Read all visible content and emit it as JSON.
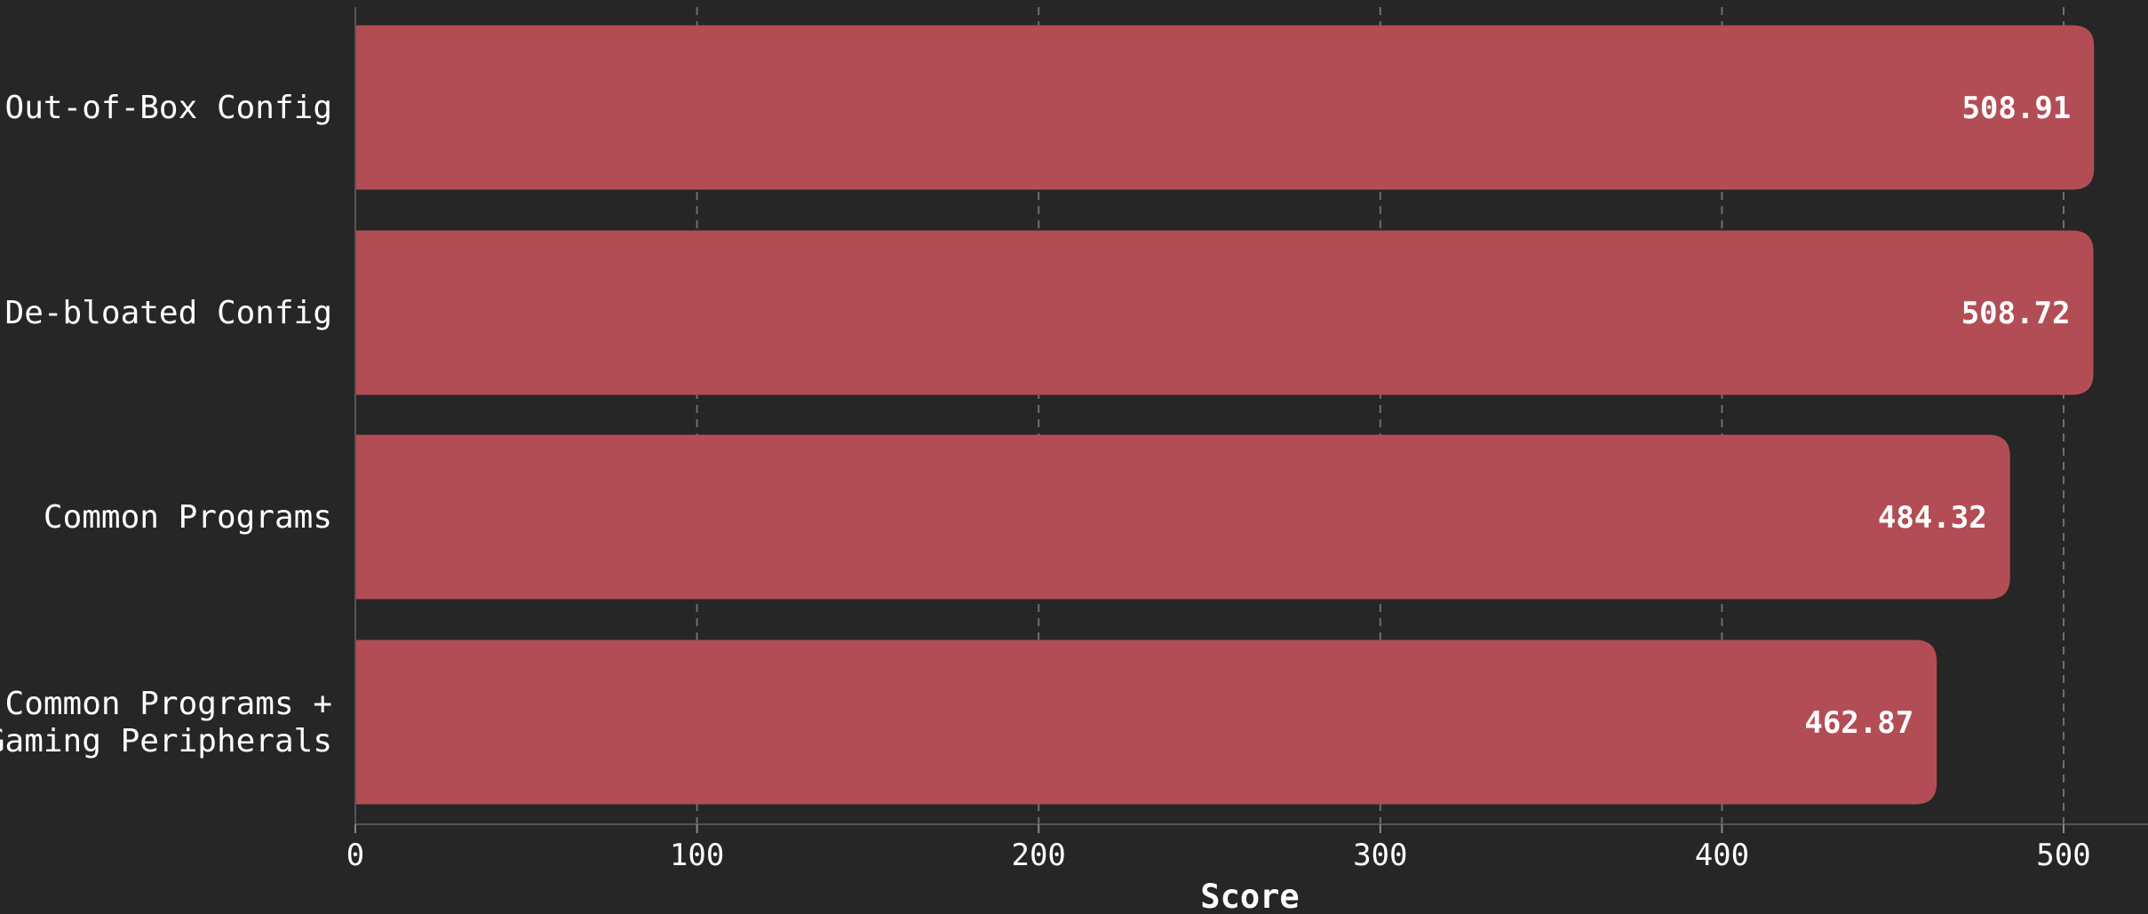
{
  "chart_data": {
    "type": "bar",
    "orientation": "horizontal",
    "categories": [
      [
        "Out-of-Box Config"
      ],
      [
        "De-bloated Config"
      ],
      [
        "Common Programs"
      ],
      [
        "Common Programs +",
        "Gaming Peripherals"
      ]
    ],
    "values": [
      508.91,
      508.72,
      484.32,
      462.87
    ],
    "value_labels": [
      "508.91",
      "508.72",
      "484.32",
      "462.87"
    ],
    "xlabel": "Score",
    "ylabel": "",
    "title": "",
    "xlim": [
      0,
      520
    ],
    "xticks": [
      0,
      100,
      200,
      300,
      400,
      500
    ],
    "grid": "vertical-dashed",
    "bar_color": "#b34d55",
    "background_color": "#262626"
  }
}
